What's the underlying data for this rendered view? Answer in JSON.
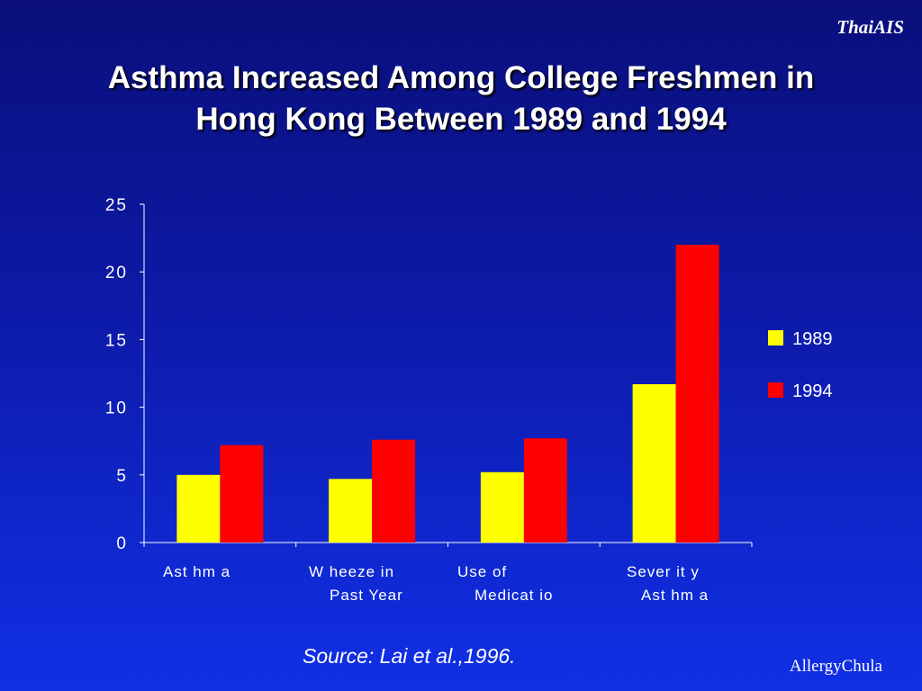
{
  "brand": "ThaiAIS",
  "title_lines": [
    "Asthma Increased Among College Freshmen in",
    "Hong Kong Between 1989 and 1994"
  ],
  "source": "Source: Lai et al.,1996.",
  "credit": "AllergyChula",
  "chart_data": {
    "type": "bar",
    "categories": [
      [
        "Ast hm a"
      ],
      [
        "W heeze  in",
        "Past  Year"
      ],
      [
        "Use of",
        "Medicat io"
      ],
      [
        "Sever it y",
        "Ast hm a"
      ]
    ],
    "series": [
      {
        "name": "1989",
        "color": "#ffff00",
        "values": [
          5.0,
          4.7,
          5.2,
          11.7
        ]
      },
      {
        "name": "1994",
        "color": "#ff0000",
        "values": [
          7.2,
          7.6,
          7.7,
          22.0
        ]
      }
    ],
    "ylim": [
      0,
      25
    ],
    "yticks": [
      0,
      5,
      10,
      15,
      20,
      25
    ],
    "legend_position": "right",
    "grid": false
  }
}
